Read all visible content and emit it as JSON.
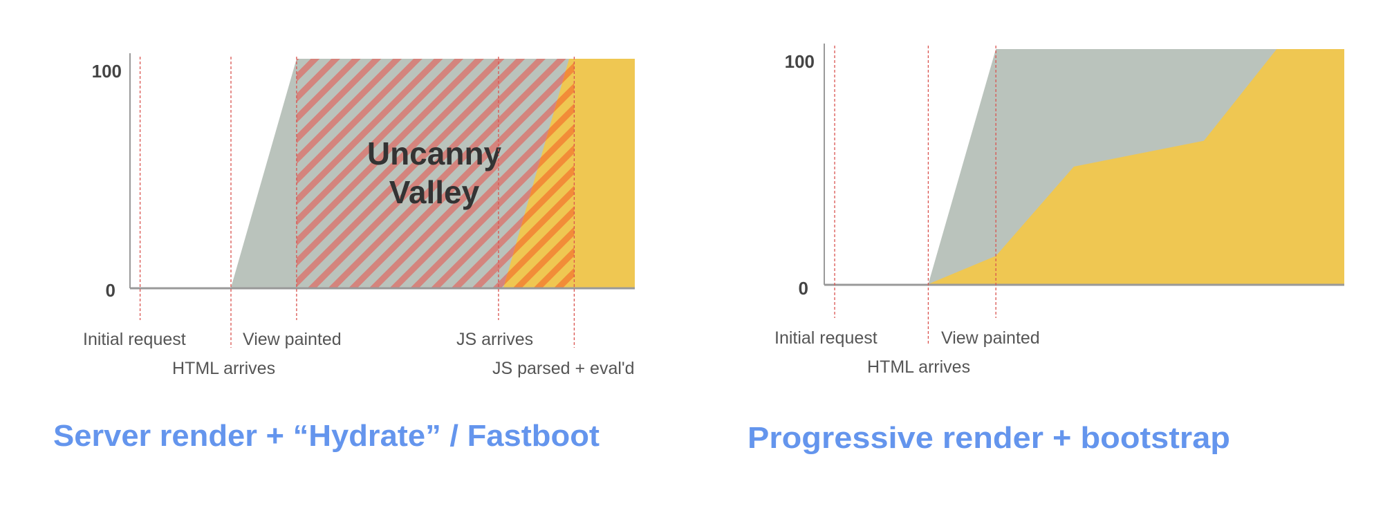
{
  "colors": {
    "view_area": "#bac3bc",
    "js_area": "#efc752",
    "valley_stripe": "#d4847d",
    "js_stripe": "#f28c38",
    "event_line": "#d9534f",
    "axis": "#999999",
    "title": "#6495ed"
  },
  "chart_data": [
    {
      "type": "area",
      "title": "Server render + “Hydrate” / Fastboot",
      "ylim": [
        0,
        100
      ],
      "xlim": [
        0,
        100
      ],
      "yticks": [
        "0",
        "100"
      ],
      "grid": false,
      "events": [
        {
          "label": "Initial request",
          "x": 2
        },
        {
          "label": "HTML arrives",
          "x": 20
        },
        {
          "label": "View painted",
          "x": 33
        },
        {
          "label": "JS arrives",
          "x": 73
        },
        {
          "label": "JS parsed + eval'd",
          "x": 88
        }
      ],
      "series": [
        {
          "key": "view",
          "points": [
            [
              0,
              0
            ],
            [
              20,
              0
            ],
            [
              33,
              100
            ],
            [
              100,
              100
            ]
          ]
        },
        {
          "key": "js",
          "points": [
            [
              0,
              0
            ],
            [
              74,
              0
            ],
            [
              87,
              100
            ],
            [
              100,
              100
            ]
          ]
        }
      ],
      "annotation": {
        "lines": [
          "Uncanny",
          "Valley"
        ],
        "x_range": [
          33,
          88
        ]
      }
    },
    {
      "type": "area",
      "title": "Progressive render + bootstrap",
      "ylim": [
        0,
        100
      ],
      "xlim": [
        0,
        100
      ],
      "yticks": [
        "0",
        "100"
      ],
      "grid": false,
      "events": [
        {
          "label": "Initial request",
          "x": 2
        },
        {
          "label": "HTML arrives",
          "x": 20
        },
        {
          "label": "View painted",
          "x": 33
        }
      ],
      "series": [
        {
          "key": "view",
          "points": [
            [
              0,
              0
            ],
            [
              20,
              0
            ],
            [
              33,
              100
            ],
            [
              100,
              100
            ]
          ]
        },
        {
          "key": "js",
          "points": [
            [
              0,
              0
            ],
            [
              20,
              0
            ],
            [
              33,
              12
            ],
            [
              48,
              50
            ],
            [
              73,
              61
            ],
            [
              87,
              100
            ],
            [
              100,
              100
            ]
          ]
        }
      ]
    }
  ]
}
